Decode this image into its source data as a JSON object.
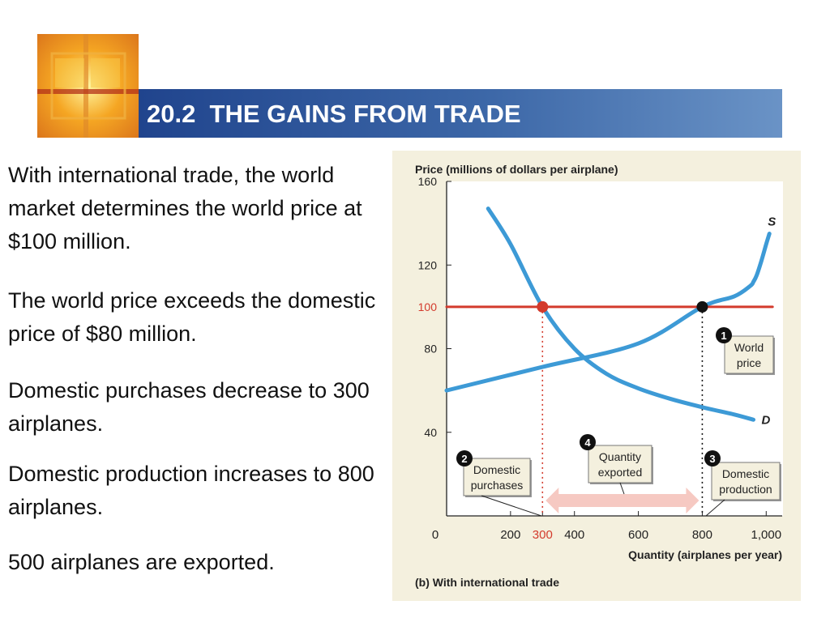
{
  "slide": {
    "title": "20.2  THE GAINS FROM TRADE",
    "bullets": [
      "With international trade, the world market determines the world price at $100 million.",
      "The world price exceeds the domestic price of $80 million.",
      "Domestic purchases decrease to 300 airplanes.",
      "Domestic production increases to 800 airplanes.",
      "500 airplanes are exported."
    ]
  },
  "chart_data": {
    "type": "line",
    "ylabel": "Price (millions of dollars per airplane)",
    "xlabel": "Quantity (airplanes per year)",
    "caption": "(b) With international trade",
    "xlim": [
      0,
      1050
    ],
    "ylim": [
      0,
      160
    ],
    "xticks": [
      0,
      200,
      300,
      400,
      600,
      800,
      1000
    ],
    "xtick_labels": [
      "0",
      "200",
      "300",
      "400",
      "600",
      "800",
      "1,000"
    ],
    "yticks": [
      40,
      80,
      100,
      120,
      160
    ],
    "ytick_labels": [
      "40",
      "80",
      "100",
      "120",
      "160"
    ],
    "series": [
      {
        "name": "S",
        "x": [
          0,
          300,
          600,
          800,
          900,
          950,
          960,
          970,
          985,
          1000,
          1010
        ],
        "y": [
          60,
          71.25,
          82.5,
          100,
          105,
          110,
          112,
          115,
          122,
          130,
          135
        ],
        "color": "#3d9ad6"
      },
      {
        "name": "D",
        "x": [
          130,
          200,
          300,
          400,
          500,
          600,
          700,
          800,
          900,
          960
        ],
        "y": [
          147,
          130,
          100,
          80,
          68,
          61,
          56,
          52,
          48.5,
          46
        ],
        "color": "#3d9ad6"
      },
      {
        "name": "World price",
        "x": [
          0,
          1020
        ],
        "y": [
          100,
          100
        ],
        "color": "#d33a2c"
      }
    ],
    "points": [
      {
        "x": 300,
        "y": 100,
        "color": "#d33a2c"
      },
      {
        "x": 800,
        "y": 100,
        "color": "#111111"
      }
    ],
    "annotations": [
      {
        "num": "1",
        "text": [
          "World",
          "price"
        ]
      },
      {
        "num": "2",
        "text": [
          "Domestic",
          "purchases"
        ]
      },
      {
        "num": "3",
        "text": [
          "Domestic",
          "production"
        ]
      },
      {
        "num": "4",
        "text": [
          "Quantity",
          "exported"
        ]
      }
    ],
    "exports_range": [
      300,
      800
    ],
    "grid": false,
    "colors": {
      "highlight_tick": "#d33a2c",
      "arrow": "#f6c9c2"
    }
  }
}
